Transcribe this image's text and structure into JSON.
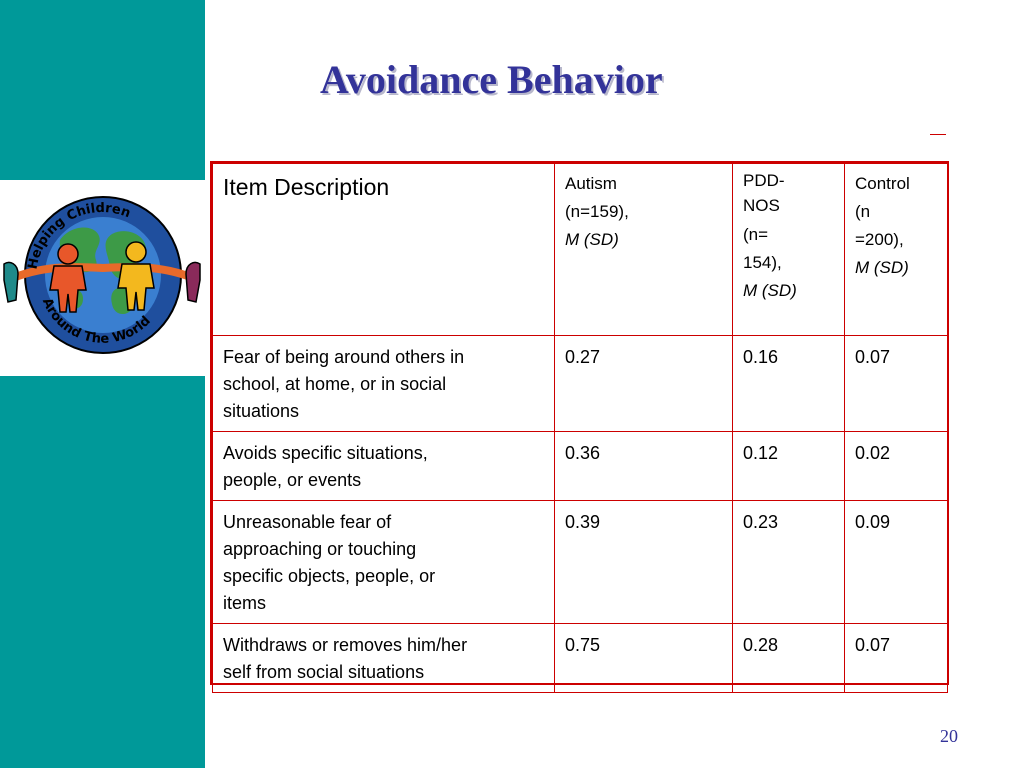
{
  "slide": {
    "title": "Avoidance Behavior",
    "page_number": "20",
    "logo": {
      "text_top": "Helping Children",
      "text_bottom": "Around The World"
    }
  },
  "table": {
    "header": {
      "item": "Item Description",
      "autism": [
        "Autism",
        "(n=159),",
        "M (SD)"
      ],
      "pddnos": [
        "PDD-",
        "NOS",
        "(n=",
        "154),",
        "M (SD)"
      ],
      "control": [
        "Control",
        "(n",
        "=200),",
        "M (SD)"
      ]
    },
    "rows": [
      {
        "item": [
          "Fear of being around others in",
          "school, at home, or in social",
          "situations"
        ],
        "autism": "0.27",
        "pddnos": "0.16",
        "control": "0.07"
      },
      {
        "item": [
          "Avoids specific situations,",
          "people, or events"
        ],
        "autism": "0.36",
        "pddnos": "0.12",
        "control": "0.02"
      },
      {
        "item": [
          "Unreasonable fear of",
          "approaching or touching",
          "specific objects, people, or",
          "items"
        ],
        "autism": "0.39",
        "pddnos": "0.23",
        "control": "0.09"
      },
      {
        "item": [
          "Withdraws or removes him/her",
          "self from social situations"
        ],
        "autism": "0.75",
        "pddnos": "0.28",
        "control": "0.07"
      }
    ]
  },
  "colors": {
    "sidebar": "#009999",
    "title": "#333399",
    "table_border": "#cc0000"
  }
}
